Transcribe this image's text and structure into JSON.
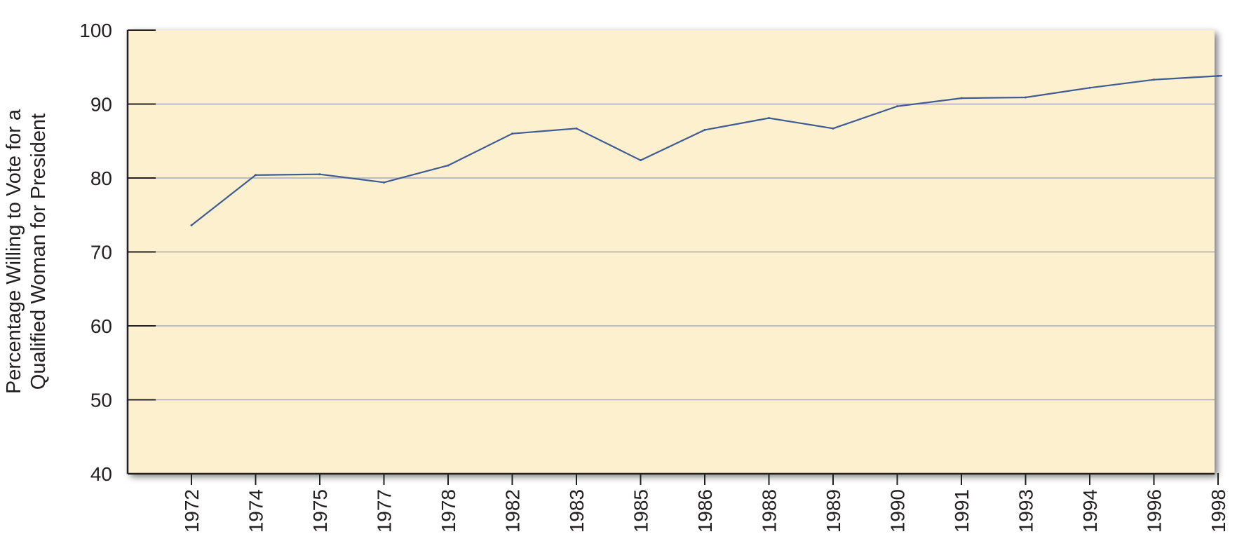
{
  "chart_data": {
    "type": "line",
    "title": "",
    "xlabel": "",
    "ylabel_lines": [
      "Percentage Willing to Vote for a",
      "Qualified Woman for President"
    ],
    "categories": [
      "1972",
      "1974",
      "1975",
      "1977",
      "1978",
      "1982",
      "1983",
      "1985",
      "1986",
      "1988",
      "1989",
      "1990",
      "1991",
      "1993",
      "1994",
      "1996",
      "1998"
    ],
    "series": [
      {
        "values": [
          73.6,
          80.4,
          80.5,
          79.4,
          81.7,
          86.0,
          86.7,
          82.4,
          86.5,
          88.1,
          86.7,
          89.7,
          90.8,
          90.9,
          92.2,
          93.3,
          93.8
        ]
      }
    ],
    "ylim": [
      40,
      100
    ],
    "yticks": [
      "40",
      "50",
      "60",
      "70",
      "80",
      "90",
      "100"
    ],
    "grid": true,
    "colors": {
      "plot_background": "#fdf0cf",
      "line": "#3f5b95",
      "gridline": "#a7aab5",
      "axis": "#231f20"
    }
  }
}
